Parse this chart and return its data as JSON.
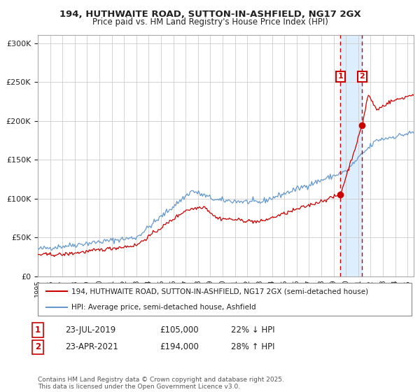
{
  "title": "194, HUTHWAITE ROAD, SUTTON-IN-ASHFIELD, NG17 2GX",
  "subtitle": "Price paid vs. HM Land Registry's House Price Index (HPI)",
  "legend_line1": "194, HUTHWAITE ROAD, SUTTON-IN-ASHFIELD, NG17 2GX (semi-detached house)",
  "legend_line2": "HPI: Average price, semi-detached house, Ashfield",
  "annotation1_label": "1",
  "annotation1_date": "23-JUL-2019",
  "annotation1_price": "£105,000",
  "annotation1_hpi": "22% ↓ HPI",
  "annotation2_label": "2",
  "annotation2_date": "23-APR-2021",
  "annotation2_price": "£194,000",
  "annotation2_hpi": "28% ↑ HPI",
  "vline1_year": 2019.55,
  "vline2_year": 2021.32,
  "marker1_x": 2019.55,
  "marker1_y": 105000,
  "marker2_x": 2021.32,
  "marker2_y": 194000,
  "ylim": [
    0,
    310000
  ],
  "xlim_start": 1995.0,
  "xlim_end": 2025.5,
  "red_color": "#cc0000",
  "blue_color": "#6699cc",
  "vline_color": "#cc0000",
  "shade_color": "#ddeeff",
  "background_color": "#ffffff",
  "grid_color": "#cccccc",
  "footnote": "Contains HM Land Registry data © Crown copyright and database right 2025.\nThis data is licensed under the Open Government Licence v3.0."
}
